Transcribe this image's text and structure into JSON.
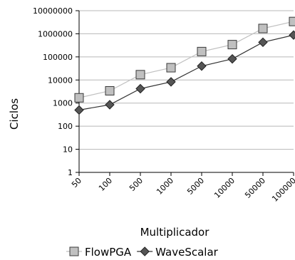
{
  "chart_data": {
    "type": "line",
    "x_scale": "categorical",
    "y_scale": "log",
    "categories": [
      "50",
      "100",
      "500",
      "1000",
      "5000",
      "10000",
      "50000",
      "100000"
    ],
    "y_ticks": [
      "1",
      "10",
      "100",
      "1000",
      "10000",
      "100000",
      "1000000",
      "10000000"
    ],
    "ylim": [
      1,
      10000000
    ],
    "xlabel": "Multiplicador",
    "ylabel": "Ciclos",
    "grid": "horizontal",
    "legend_position": "bottom",
    "series": [
      {
        "name": "FlowPGA",
        "marker": "square",
        "line_color": "#c0c0c0",
        "marker_fill": "#c0c0c0",
        "values": [
          1700,
          3400,
          17000,
          34000,
          170000,
          340000,
          1700000,
          3400000
        ]
      },
      {
        "name": "WaveScalar",
        "marker": "diamond",
        "line_color": "#333333",
        "marker_fill": "#555555",
        "values": [
          500,
          850,
          4200,
          8300,
          40000,
          82000,
          430000,
          880000
        ]
      }
    ]
  }
}
